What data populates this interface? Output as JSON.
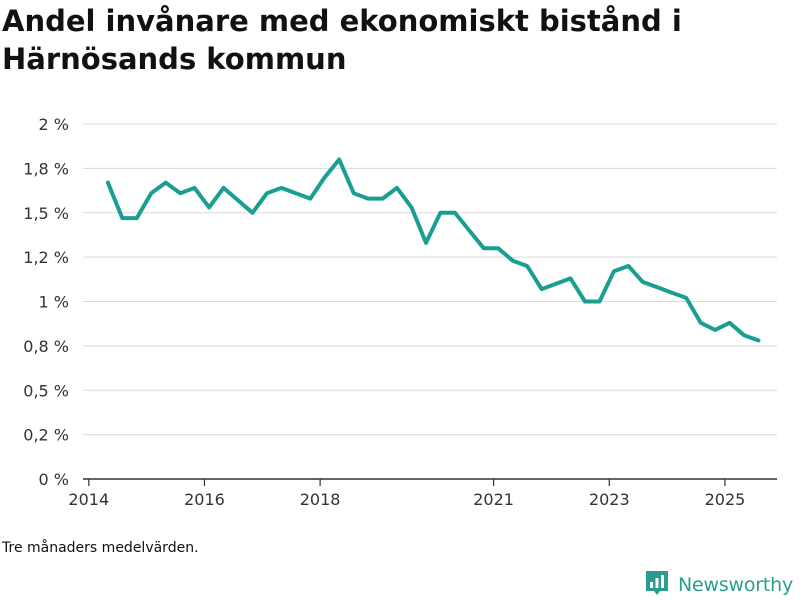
{
  "title": "Andel invånare med ekonomiskt bistånd i Härnösands kommun",
  "note": "Tre månaders medelvärden.",
  "brand": {
    "name": "Newsworthy",
    "logo_icon": "bar-chart-logo-icon",
    "color": "#2a9d8f"
  },
  "colors": {
    "line": "#1a9e92",
    "grid": "#d9d9d9",
    "axis": "#333333"
  },
  "chart_data": {
    "type": "line",
    "title": "Andel invånare med ekonomiskt bistånd i Härnösands kommun",
    "xlabel": "",
    "ylabel": "",
    "ylim": [
      0,
      2
    ],
    "xlim": [
      2013.9,
      2025.9
    ],
    "grid": true,
    "y_ticks": [
      {
        "value": 0,
        "label": "0 %"
      },
      {
        "value": 0.25,
        "label": "0,2 %"
      },
      {
        "value": 0.5,
        "label": "0,5 %"
      },
      {
        "value": 0.75,
        "label": "0,8 %"
      },
      {
        "value": 1.0,
        "label": "1 %"
      },
      {
        "value": 1.25,
        "label": "1,2 %"
      },
      {
        "value": 1.5,
        "label": "1,5 %"
      },
      {
        "value": 1.75,
        "label": "1,8 %"
      },
      {
        "value": 2.0,
        "label": "2 %"
      }
    ],
    "x_ticks": [
      {
        "value": 2014,
        "label": "2014"
      },
      {
        "value": 2016,
        "label": "2016"
      },
      {
        "value": 2018,
        "label": "2018"
      },
      {
        "value": 2021,
        "label": "2021"
      },
      {
        "value": 2023,
        "label": "2023"
      },
      {
        "value": 2025,
        "label": "2025"
      }
    ],
    "series": [
      {
        "name": "Andel invånare med ekonomiskt bistånd",
        "x": [
          2014.33,
          2014.58,
          2014.83,
          2015.08,
          2015.33,
          2015.58,
          2015.83,
          2016.08,
          2016.33,
          2016.58,
          2016.83,
          2017.08,
          2017.33,
          2017.58,
          2017.83,
          2018.08,
          2018.33,
          2018.58,
          2018.83,
          2019.08,
          2019.33,
          2019.58,
          2019.83,
          2020.08,
          2020.33,
          2020.58,
          2020.83,
          2021.08,
          2021.33,
          2021.58,
          2021.83,
          2022.08,
          2022.33,
          2022.58,
          2022.83,
          2023.08,
          2023.33,
          2023.58,
          2023.83,
          2024.08,
          2024.33,
          2024.58,
          2024.83,
          2025.08,
          2025.33,
          2025.58
        ],
        "values": [
          1.67,
          1.47,
          1.47,
          1.61,
          1.67,
          1.61,
          1.64,
          1.53,
          1.64,
          1.57,
          1.5,
          1.61,
          1.64,
          1.61,
          1.58,
          1.7,
          1.8,
          1.61,
          1.58,
          1.58,
          1.64,
          1.53,
          1.33,
          1.5,
          1.5,
          1.4,
          1.3,
          1.3,
          1.23,
          1.2,
          1.07,
          1.1,
          1.13,
          1.0,
          1.0,
          1.17,
          1.2,
          1.11,
          1.08,
          1.05,
          1.02,
          0.88,
          0.84,
          0.88,
          0.81,
          0.78
        ]
      }
    ]
  }
}
